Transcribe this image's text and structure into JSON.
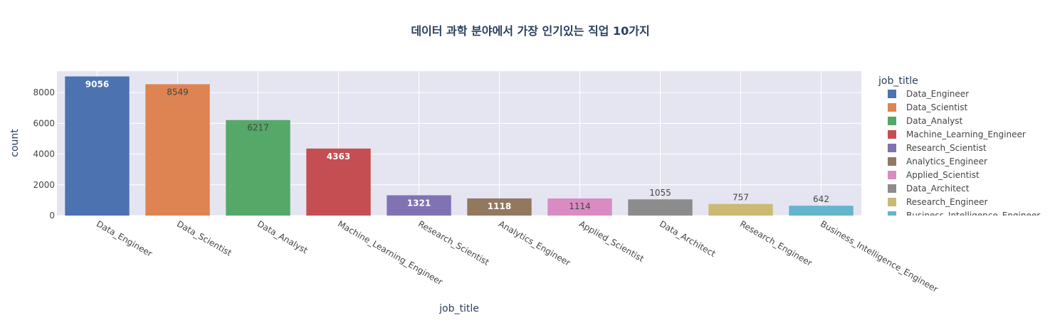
{
  "chart_data": {
    "type": "bar",
    "title": "데이터 과학 분야에서 가장 인기있는 직업 10가지",
    "xlabel": "job_title",
    "ylabel": "count",
    "ylim": [
      0,
      9400
    ],
    "yticks": [
      0,
      2000,
      4000,
      6000,
      8000
    ],
    "grid": true,
    "legend": {
      "title": "job_title",
      "placement": "right"
    },
    "categories": [
      "Data_Engineer",
      "Data_Scientist",
      "Data_Analyst",
      "Machine_Learning_Engineer",
      "Research_Scientist",
      "Analytics_Engineer",
      "Applied_Scientist",
      "Data_Architect",
      "Research_Engineer",
      "Business_Intelligence_Engineer"
    ],
    "values": [
      9056,
      8549,
      6217,
      4363,
      1321,
      1118,
      1114,
      1055,
      757,
      642
    ],
    "colors": [
      "#4c72b0",
      "#dd8452",
      "#55a868",
      "#c44e52",
      "#8172b3",
      "#937860",
      "#da8bc3",
      "#8c8c8c",
      "#ccb974",
      "#64b5cd"
    ],
    "label_colors": [
      "#ffffff",
      "#444444",
      "#444444",
      "#ffffff",
      "#ffffff",
      "#ffffff",
      "#444444",
      "#444444",
      "#444444",
      "#444444"
    ],
    "label_bold": [
      true,
      false,
      false,
      true,
      true,
      true,
      false,
      false,
      false,
      false
    ]
  }
}
